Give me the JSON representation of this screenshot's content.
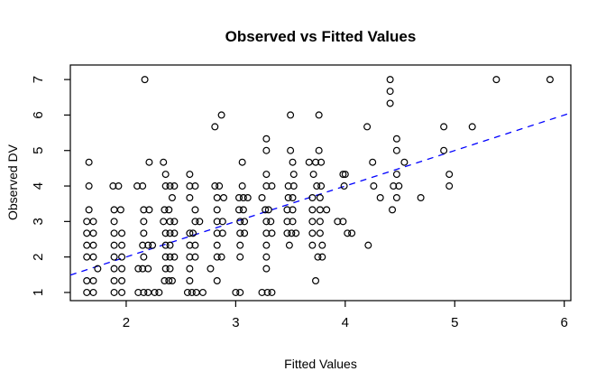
{
  "chart_data": {
    "type": "scatter",
    "title": "Observed vs Fitted Values",
    "xlabel": "Fitted Values",
    "ylabel": "Observed DV",
    "xlim": [
      1.49,
      6.06
    ],
    "ylim": [
      0.77,
      7.41
    ],
    "x_ticks": [
      2,
      3,
      4,
      5,
      6
    ],
    "y_ticks": [
      1,
      2,
      3,
      4,
      5,
      6,
      7
    ],
    "grid": "off",
    "legend": "none",
    "marker": "open-circle",
    "marker_color": "#000000",
    "reference_line": {
      "style": "dashed",
      "color": "#0000ff",
      "from": [
        1.49,
        1.49
      ],
      "to": [
        6.06,
        6.06
      ]
    },
    "points": [
      [
        2.17,
        7
      ],
      [
        4.41,
        7
      ],
      [
        5.38,
        7
      ],
      [
        5.87,
        7
      ],
      [
        4.41,
        6.67
      ],
      [
        4.41,
        6.33
      ],
      [
        2.87,
        6
      ],
      [
        3.5,
        6
      ],
      [
        3.76,
        6
      ],
      [
        2.81,
        5.67
      ],
      [
        4.2,
        5.67
      ],
      [
        4.9,
        5.67
      ],
      [
        5.16,
        5.67
      ],
      [
        3.28,
        5.33
      ],
      [
        4.47,
        5.33
      ],
      [
        3.28,
        5
      ],
      [
        3.5,
        5
      ],
      [
        3.76,
        5
      ],
      [
        4.47,
        5
      ],
      [
        4.9,
        5
      ],
      [
        1.66,
        4.67
      ],
      [
        2.21,
        4.67
      ],
      [
        2.34,
        4.67
      ],
      [
        3.06,
        4.67
      ],
      [
        3.52,
        4.67
      ],
      [
        3.67,
        4.67
      ],
      [
        3.73,
        4.67
      ],
      [
        3.78,
        4.67
      ],
      [
        4.25,
        4.67
      ],
      [
        4.54,
        4.67
      ],
      [
        2.36,
        4.33
      ],
      [
        2.58,
        4.33
      ],
      [
        3.28,
        4.33
      ],
      [
        3.53,
        4.33
      ],
      [
        3.71,
        4.33
      ],
      [
        3.98,
        4.33
      ],
      [
        4.0,
        4.33
      ],
      [
        4.47,
        4.33
      ],
      [
        4.95,
        4.33
      ],
      [
        1.66,
        4
      ],
      [
        1.88,
        4
      ],
      [
        1.93,
        4
      ],
      [
        2.1,
        4
      ],
      [
        2.15,
        4
      ],
      [
        2.36,
        4
      ],
      [
        2.4,
        4
      ],
      [
        2.44,
        4
      ],
      [
        2.58,
        4
      ],
      [
        2.63,
        4
      ],
      [
        2.81,
        4
      ],
      [
        2.85,
        4
      ],
      [
        3.06,
        4
      ],
      [
        3.28,
        4
      ],
      [
        3.33,
        4
      ],
      [
        3.48,
        4
      ],
      [
        3.53,
        4
      ],
      [
        3.74,
        4
      ],
      [
        3.78,
        4
      ],
      [
        3.99,
        4
      ],
      [
        4.26,
        4
      ],
      [
        4.44,
        4
      ],
      [
        4.49,
        4
      ],
      [
        4.95,
        4
      ],
      [
        2.42,
        3.67
      ],
      [
        2.58,
        3.67
      ],
      [
        2.83,
        3.67
      ],
      [
        2.89,
        3.67
      ],
      [
        3.03,
        3.67
      ],
      [
        3.07,
        3.67
      ],
      [
        3.11,
        3.67
      ],
      [
        3.24,
        3.67
      ],
      [
        3.48,
        3.67
      ],
      [
        3.52,
        3.67
      ],
      [
        3.7,
        3.67
      ],
      [
        3.77,
        3.67
      ],
      [
        4.32,
        3.67
      ],
      [
        4.47,
        3.67
      ],
      [
        4.69,
        3.67
      ],
      [
        1.66,
        3.33
      ],
      [
        1.89,
        3.33
      ],
      [
        1.95,
        3.33
      ],
      [
        2.16,
        3.33
      ],
      [
        2.21,
        3.33
      ],
      [
        2.35,
        3.33
      ],
      [
        2.39,
        3.33
      ],
      [
        2.63,
        3.33
      ],
      [
        2.83,
        3.33
      ],
      [
        3.03,
        3.33
      ],
      [
        3.07,
        3.33
      ],
      [
        3.27,
        3.33
      ],
      [
        3.3,
        3.33
      ],
      [
        3.47,
        3.33
      ],
      [
        3.52,
        3.33
      ],
      [
        3.7,
        3.33
      ],
      [
        3.77,
        3.33
      ],
      [
        3.83,
        3.33
      ],
      [
        4.43,
        3.33
      ],
      [
        1.64,
        3
      ],
      [
        1.7,
        3
      ],
      [
        1.89,
        3
      ],
      [
        2.16,
        3
      ],
      [
        2.34,
        3
      ],
      [
        2.4,
        3
      ],
      [
        2.44,
        3
      ],
      [
        2.63,
        3
      ],
      [
        2.67,
        3
      ],
      [
        2.83,
        3
      ],
      [
        2.88,
        3
      ],
      [
        3.04,
        3
      ],
      [
        3.08,
        3
      ],
      [
        3.28,
        3
      ],
      [
        3.32,
        3
      ],
      [
        3.47,
        3
      ],
      [
        3.52,
        3
      ],
      [
        3.7,
        3
      ],
      [
        3.77,
        3
      ],
      [
        3.93,
        3
      ],
      [
        3.98,
        3
      ],
      [
        1.64,
        2.67
      ],
      [
        1.7,
        2.67
      ],
      [
        1.89,
        2.67
      ],
      [
        1.96,
        2.67
      ],
      [
        2.16,
        2.67
      ],
      [
        2.36,
        2.67
      ],
      [
        2.4,
        2.67
      ],
      [
        2.44,
        2.67
      ],
      [
        2.58,
        2.67
      ],
      [
        2.61,
        2.67
      ],
      [
        2.83,
        2.67
      ],
      [
        2.88,
        2.67
      ],
      [
        3.04,
        2.67
      ],
      [
        3.08,
        2.67
      ],
      [
        3.28,
        2.67
      ],
      [
        3.33,
        2.67
      ],
      [
        3.47,
        2.67
      ],
      [
        3.51,
        2.67
      ],
      [
        3.55,
        2.67
      ],
      [
        3.7,
        2.67
      ],
      [
        3.77,
        2.67
      ],
      [
        4.02,
        2.67
      ],
      [
        4.06,
        2.67
      ],
      [
        1.64,
        2.33
      ],
      [
        1.7,
        2.33
      ],
      [
        1.89,
        2.33
      ],
      [
        1.96,
        2.33
      ],
      [
        2.15,
        2.33
      ],
      [
        2.2,
        2.33
      ],
      [
        2.24,
        2.33
      ],
      [
        2.36,
        2.33
      ],
      [
        2.4,
        2.33
      ],
      [
        2.58,
        2.33
      ],
      [
        2.63,
        2.33
      ],
      [
        2.83,
        2.33
      ],
      [
        3.04,
        2.33
      ],
      [
        3.28,
        2.33
      ],
      [
        3.49,
        2.33
      ],
      [
        3.7,
        2.33
      ],
      [
        3.79,
        2.33
      ],
      [
        4.21,
        2.33
      ],
      [
        1.64,
        2
      ],
      [
        1.7,
        2
      ],
      [
        1.89,
        2
      ],
      [
        1.96,
        2
      ],
      [
        2.16,
        2
      ],
      [
        2.36,
        2
      ],
      [
        2.4,
        2
      ],
      [
        2.44,
        2
      ],
      [
        2.58,
        2
      ],
      [
        2.63,
        2
      ],
      [
        2.83,
        2
      ],
      [
        2.87,
        2
      ],
      [
        3.04,
        2
      ],
      [
        3.28,
        2
      ],
      [
        3.75,
        2
      ],
      [
        3.79,
        2
      ],
      [
        1.74,
        1.67
      ],
      [
        1.89,
        1.67
      ],
      [
        1.96,
        1.67
      ],
      [
        2.11,
        1.67
      ],
      [
        2.15,
        1.67
      ],
      [
        2.2,
        1.67
      ],
      [
        2.36,
        1.67
      ],
      [
        2.4,
        1.67
      ],
      [
        2.58,
        1.67
      ],
      [
        2.77,
        1.67
      ],
      [
        3.28,
        1.67
      ],
      [
        1.64,
        1.33
      ],
      [
        1.7,
        1.33
      ],
      [
        1.89,
        1.33
      ],
      [
        1.96,
        1.33
      ],
      [
        2.35,
        1.33
      ],
      [
        2.39,
        1.33
      ],
      [
        2.42,
        1.33
      ],
      [
        2.58,
        1.33
      ],
      [
        2.83,
        1.33
      ],
      [
        3.73,
        1.33
      ],
      [
        1.64,
        1
      ],
      [
        1.7,
        1
      ],
      [
        1.89,
        1
      ],
      [
        1.96,
        1
      ],
      [
        2.11,
        1
      ],
      [
        2.16,
        1
      ],
      [
        2.2,
        1
      ],
      [
        2.26,
        1
      ],
      [
        2.3,
        1
      ],
      [
        2.56,
        1
      ],
      [
        2.6,
        1
      ],
      [
        2.64,
        1
      ],
      [
        2.7,
        1
      ],
      [
        3.0,
        1
      ],
      [
        3.04,
        1
      ],
      [
        3.24,
        1
      ],
      [
        3.29,
        1
      ],
      [
        3.33,
        1
      ]
    ]
  }
}
